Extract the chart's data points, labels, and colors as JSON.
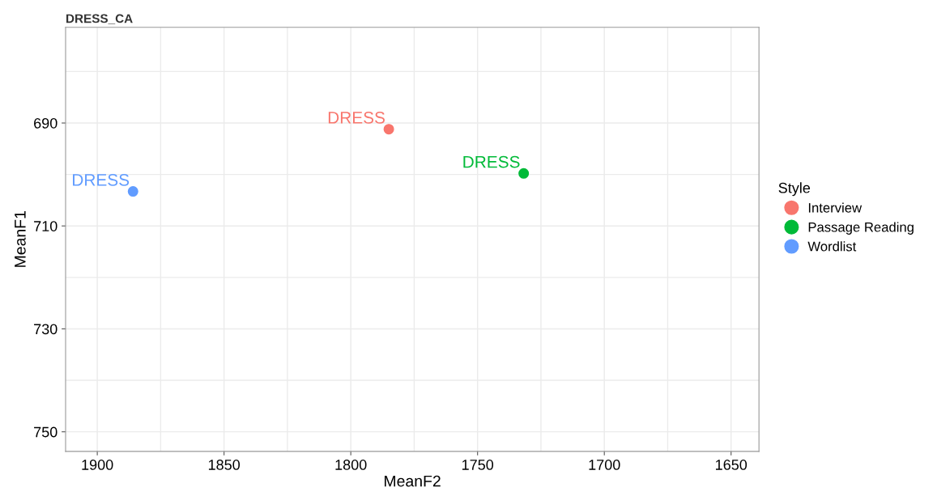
{
  "chart_data": {
    "type": "scatter",
    "title": "DRESS_CA",
    "xlabel": "MeanF2",
    "ylabel": "MeanF1",
    "legend_title": "Style",
    "series": [
      {
        "name": "Interview",
        "color": "#f8766d",
        "x": [
          1785.0
        ],
        "values": [
          691.2
        ]
      },
      {
        "name": "Passage Reading",
        "color": "#00ba38",
        "x": [
          1731.8
        ],
        "values": [
          699.8
        ]
      },
      {
        "name": "Wordlist",
        "color": "#619cff",
        "x": [
          1885.9
        ],
        "values": [
          703.3
        ]
      }
    ],
    "annotations": [
      {
        "text": "DRESS",
        "x": 1785.0,
        "y": 691.2
      },
      {
        "text": "DRESS",
        "x": 1731.8,
        "y": 699.8
      },
      {
        "text": "DRESS",
        "x": 1885.9,
        "y": 703.3
      }
    ],
    "xlim": [
      1912.5,
      1639
    ],
    "ylim": [
      753.8,
      671.4
    ],
    "xticks": [
      1900,
      {
        "value": 1875,
        "label": null
      },
      1850,
      {
        "value": 1825,
        "label": null
      },
      1800,
      {
        "value": 1775,
        "label": null
      },
      1750,
      {
        "value": 1725,
        "label": null
      },
      1700,
      {
        "value": 1675,
        "label": null
      },
      1650
    ],
    "yticks": [
      {
        "value": 680,
        "label": null
      },
      690,
      {
        "value": 700,
        "label": null
      },
      710,
      {
        "value": 720,
        "label": null
      },
      730,
      {
        "value": 740,
        "label": null
      },
      750
    ],
    "grid": true,
    "legend": "right",
    "marker": "circle"
  }
}
